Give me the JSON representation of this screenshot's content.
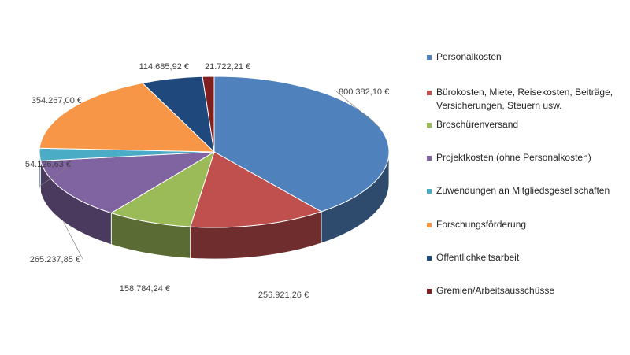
{
  "chart_data": {
    "type": "pie",
    "title": "",
    "legend_position": "right",
    "slices": [
      {
        "name": "Personalkosten",
        "value": 800382.1,
        "label": "800.382,10 €",
        "color": "#4f81bd"
      },
      {
        "name": "Bürokosten, Miete, Reisekosten, Beiträge, Versicherungen, Steuern usw.",
        "value": 256921.26,
        "label": "256.921,26 €",
        "color": "#c0504d"
      },
      {
        "name": "Broschürenversand",
        "value": 158784.24,
        "label": "158.784,24 €",
        "color": "#9bbb59"
      },
      {
        "name": "Projektkosten (ohne Personalkosten)",
        "value": 265237.85,
        "label": "265.237,85 €",
        "color": "#8064a2"
      },
      {
        "name": "Zuwendungen an Mitgliedsgesellschaften",
        "value": 54126.63,
        "label": "54.126,63 €",
        "color": "#4bacc6"
      },
      {
        "name": "Forschungsförderung",
        "value": 354267.0,
        "label": "354.267,00 €",
        "color": "#f79646"
      },
      {
        "name": "Öffentlichkeitsarbeit",
        "value": 114685.92,
        "label": "114.685,92 €",
        "color": "#1f497d"
      },
      {
        "name": "Gremien/Arbeitsausschüsse",
        "value": 21722.21,
        "label": "21.722,21 €",
        "color": "#7f1f1f"
      }
    ]
  }
}
